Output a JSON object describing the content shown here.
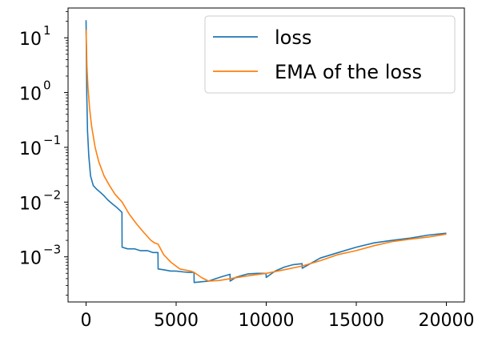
{
  "chart_data": {
    "type": "line",
    "title": "",
    "xlabel": "",
    "ylabel": "",
    "xlim": [
      -1000,
      21000
    ],
    "ylim": [
      0.00015,
      35
    ],
    "yscale": "log",
    "grid": false,
    "legend_position": "top-right",
    "xticks": [
      {
        "value": 0,
        "label": "0"
      },
      {
        "value": 5000,
        "label": "5000"
      },
      {
        "value": 10000,
        "label": "10000"
      },
      {
        "value": 15000,
        "label": "15000"
      },
      {
        "value": 20000,
        "label": "20000"
      }
    ],
    "yticks": [
      {
        "value": 0.001,
        "base": "10",
        "exp": "−3"
      },
      {
        "value": 0.01,
        "base": "10",
        "exp": "−2"
      },
      {
        "value": 0.1,
        "base": "10",
        "exp": "−1"
      },
      {
        "value": 1,
        "base": "10",
        "exp": "0"
      },
      {
        "value": 10,
        "base": "10",
        "exp": "1"
      }
    ],
    "series": [
      {
        "name": "loss",
        "color": "#1f77b4",
        "x": [
          0,
          20,
          40,
          80,
          150,
          250,
          400,
          600,
          800,
          1000,
          1200,
          1500,
          1700,
          1990,
          2000,
          2300,
          2700,
          3000,
          3400,
          3700,
          3990,
          4000,
          4300,
          4700,
          5000,
          5400,
          5700,
          5990,
          6000,
          6400,
          6800,
          7200,
          7600,
          7990,
          8000,
          8300,
          8700,
          9000,
          9500,
          9990,
          10000,
          10500,
          11000,
          11500,
          11990,
          12000,
          13000,
          14000,
          15000,
          16000,
          17000,
          18000,
          19000,
          20000
        ],
        "y": [
          21,
          3.5,
          0.9,
          0.2,
          0.07,
          0.03,
          0.02,
          0.017,
          0.015,
          0.013,
          0.011,
          0.009,
          0.008,
          0.0065,
          0.0015,
          0.0014,
          0.0014,
          0.0013,
          0.0013,
          0.0012,
          0.0012,
          0.0006,
          0.00058,
          0.00055,
          0.00055,
          0.00053,
          0.00052,
          0.00052,
          0.00034,
          0.00035,
          0.00036,
          0.0004,
          0.00044,
          0.00048,
          0.00036,
          0.00042,
          0.00046,
          0.00049,
          0.0005,
          0.0005,
          0.00042,
          0.00055,
          0.00065,
          0.00072,
          0.00075,
          0.00062,
          0.00095,
          0.0012,
          0.0015,
          0.0018,
          0.002,
          0.0022,
          0.0025,
          0.0027
        ]
      },
      {
        "name": "EMA of the loss",
        "color": "#ff7f0e",
        "x": [
          0,
          50,
          100,
          200,
          300,
          500,
          700,
          1000,
          1300,
          1600,
          2000,
          2400,
          2800,
          3200,
          3600,
          3800,
          4000,
          4300,
          4700,
          5200,
          5800,
          6000,
          6400,
          6800,
          7400,
          8000,
          8600,
          9200,
          10000,
          11000,
          12000,
          13000,
          14000,
          15000,
          16000,
          17000,
          18000,
          19000,
          20000
        ],
        "y": [
          14,
          3.0,
          1.3,
          0.5,
          0.25,
          0.1,
          0.055,
          0.03,
          0.02,
          0.014,
          0.01,
          0.006,
          0.004,
          0.0028,
          0.002,
          0.0018,
          0.0017,
          0.0011,
          0.0008,
          0.0006,
          0.00055,
          0.00052,
          0.00042,
          0.00036,
          0.00037,
          0.0004,
          0.00043,
          0.00046,
          0.0005,
          0.00058,
          0.00068,
          0.00085,
          0.0011,
          0.0013,
          0.0016,
          0.0019,
          0.0021,
          0.0023,
          0.0026
        ]
      }
    ]
  }
}
